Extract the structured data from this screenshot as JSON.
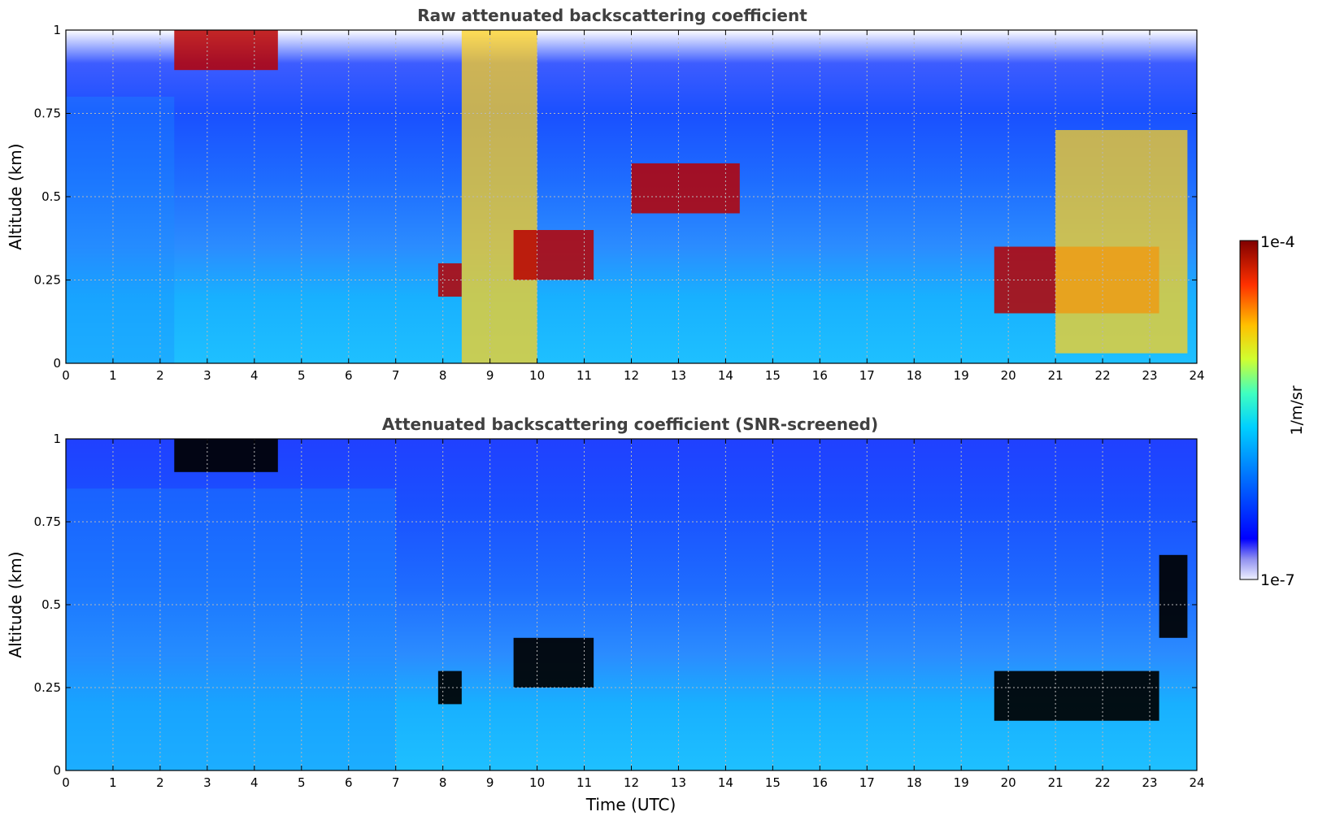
{
  "figure": {
    "colorbar": {
      "max_label": "1e-4",
      "min_label": "1e-7",
      "unit_label": "1/m/sr",
      "colormap": "jet",
      "scale": "log"
    }
  },
  "chart_data": [
    {
      "type": "heatmap",
      "title": "Raw attenuated backscattering coefficient",
      "xlabel": "",
      "ylabel": "Altitude (km)",
      "xlim": [
        0,
        24
      ],
      "ylim": [
        0,
        1
      ],
      "x_ticks": [
        "0",
        "1",
        "2",
        "3",
        "4",
        "5",
        "6",
        "7",
        "8",
        "9",
        "10",
        "11",
        "12",
        "13",
        "14",
        "15",
        "16",
        "17",
        "18",
        "19",
        "20",
        "21",
        "22",
        "23",
        "24"
      ],
      "y_ticks": [
        "0",
        "0.25",
        "0.5",
        "0.75",
        "1"
      ],
      "grid": true,
      "features": [
        {
          "x": [
            0,
            2.3
          ],
          "y": [
            0,
            0.8
          ],
          "level": "moderate"
        },
        {
          "x": [
            2.3,
            4.5
          ],
          "y": [
            0.88,
            1.0
          ],
          "level": "high"
        },
        {
          "x": [
            7.9,
            8.4
          ],
          "y": [
            0.2,
            0.3
          ],
          "level": "high"
        },
        {
          "x": [
            8.4,
            10.0
          ],
          "y": [
            0,
            1.0
          ],
          "level": "elevated"
        },
        {
          "x": [
            9.5,
            11.2
          ],
          "y": [
            0.25,
            0.4
          ],
          "level": "high"
        },
        {
          "x": [
            12.0,
            14.3
          ],
          "y": [
            0.45,
            0.6
          ],
          "level": "high"
        },
        {
          "x": [
            19.7,
            23.2
          ],
          "y": [
            0.15,
            0.35
          ],
          "level": "high"
        },
        {
          "x": [
            21.0,
            23.8
          ],
          "y": [
            0.03,
            0.7
          ],
          "level": "elevated"
        }
      ]
    },
    {
      "type": "heatmap",
      "title": "Attenuated backscattering coefficient (SNR-screened)",
      "xlabel": "Time (UTC)",
      "ylabel": "Altitude (km)",
      "xlim": [
        0,
        24
      ],
      "ylim": [
        0,
        1
      ],
      "x_ticks": [
        "0",
        "1",
        "2",
        "3",
        "4",
        "5",
        "6",
        "7",
        "8",
        "9",
        "10",
        "11",
        "12",
        "13",
        "14",
        "15",
        "16",
        "17",
        "18",
        "19",
        "20",
        "21",
        "22",
        "23",
        "24"
      ],
      "y_ticks": [
        "0",
        "0.25",
        "0.5",
        "0.75",
        "1"
      ],
      "grid": true,
      "features": [
        {
          "x": [
            0,
            7.0
          ],
          "y": [
            0,
            0.85
          ],
          "level": "moderate"
        },
        {
          "x": [
            2.3,
            4.5
          ],
          "y": [
            0.9,
            1.0
          ],
          "level": "saturated"
        },
        {
          "x": [
            7.9,
            8.4
          ],
          "y": [
            0.2,
            0.3
          ],
          "level": "saturated"
        },
        {
          "x": [
            9.5,
            11.2
          ],
          "y": [
            0.25,
            0.4
          ],
          "level": "saturated"
        },
        {
          "x": [
            19.7,
            23.2
          ],
          "y": [
            0.15,
            0.3
          ],
          "level": "saturated"
        },
        {
          "x": [
            23.2,
            23.8
          ],
          "y": [
            0.4,
            0.65
          ],
          "level": "saturated"
        }
      ]
    }
  ]
}
